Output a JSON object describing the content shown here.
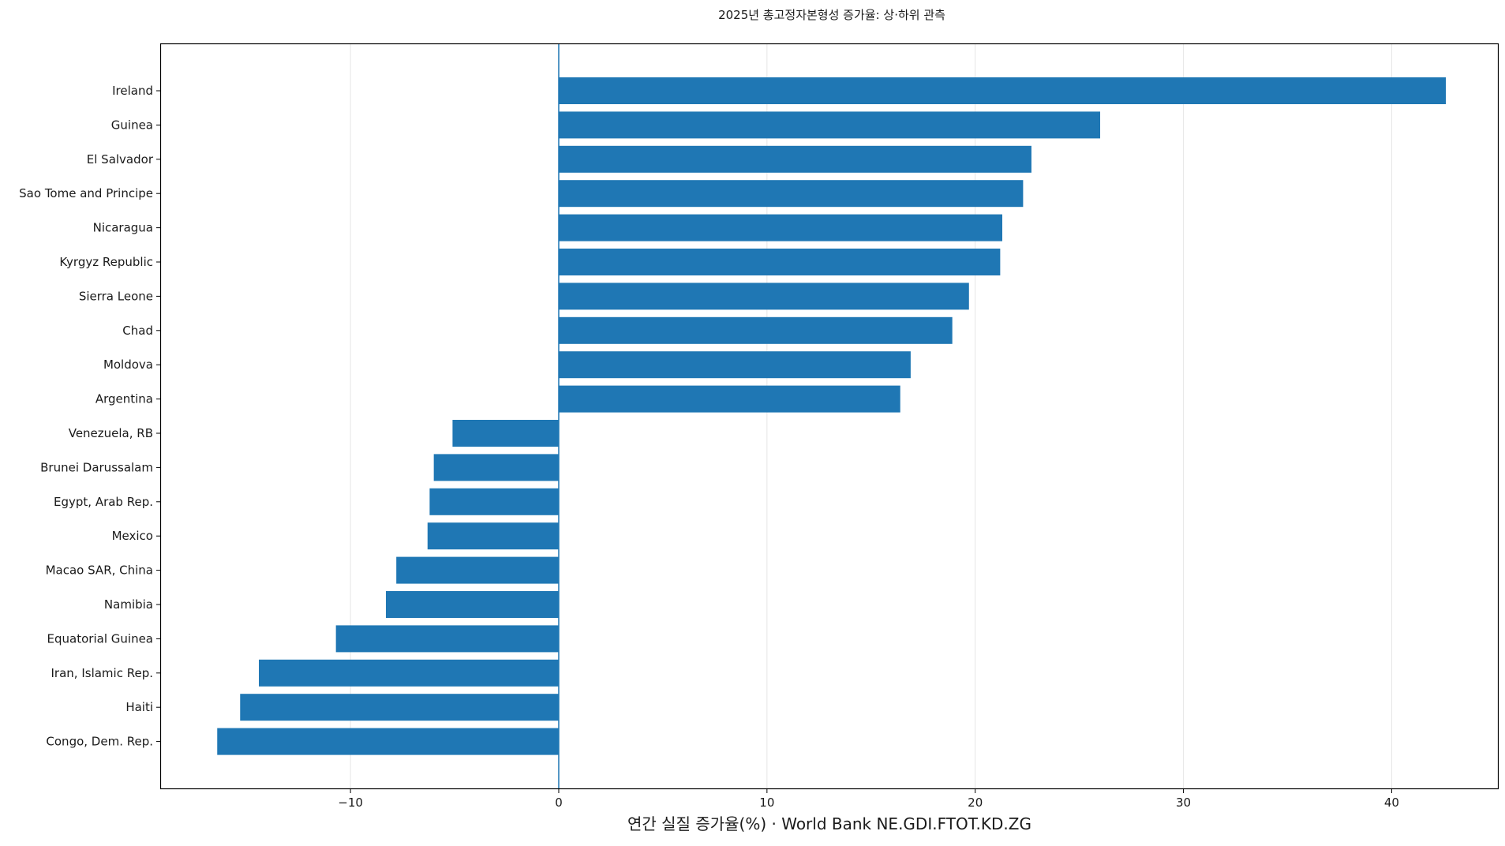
{
  "chart_data": {
    "type": "bar",
    "orientation": "horizontal",
    "title": "2025년 총고정자본형성 증가율: 상·하위 관측",
    "xlabel": "연간 실질 증가율(%) · World Bank NE.GDI.FTOT.KD.ZG",
    "ylabel": "",
    "xlim": [
      -19.1,
      45.1
    ],
    "xticks": [
      -10,
      0,
      10,
      20,
      30,
      40
    ],
    "xtick_labels": [
      "−10",
      "0",
      "10",
      "20",
      "30",
      "40"
    ],
    "grid": "x",
    "bar_color": "#1f77b4",
    "categories": [
      "Ireland",
      "Guinea",
      "El Salvador",
      "Sao Tome and Principe",
      "Nicaragua",
      "Kyrgyz Republic",
      "Sierra Leone",
      "Chad",
      "Moldova",
      "Argentina",
      "Venezuela, RB",
      "Brunei Darussalam",
      "Egypt, Arab Rep.",
      "Mexico",
      "Macao SAR, China",
      "Namibia",
      "Equatorial Guinea",
      "Iran, Islamic Rep.",
      "Haiti",
      "Congo, Dem. Rep."
    ],
    "values": [
      42.6,
      26.0,
      22.7,
      22.3,
      21.3,
      21.2,
      19.7,
      18.9,
      16.9,
      16.4,
      -5.1,
      -6.0,
      -6.2,
      -6.3,
      -7.8,
      -8.3,
      -10.7,
      -14.4,
      -15.3,
      -16.4
    ]
  }
}
